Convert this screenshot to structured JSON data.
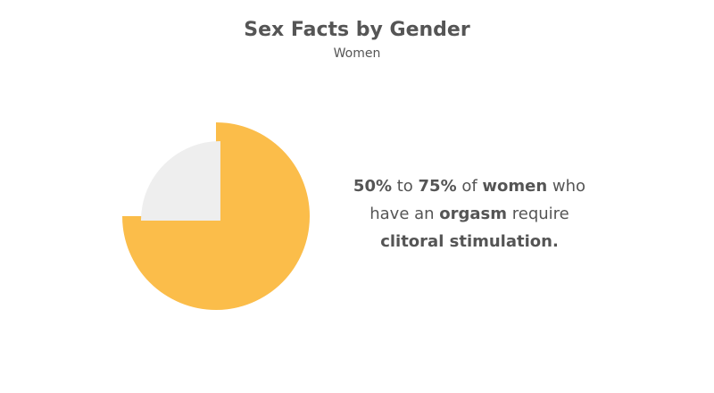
{
  "chart_data": {
    "type": "pie",
    "title": "Sex Facts by Gender",
    "subtitle": "Women",
    "values": [
      75,
      25
    ],
    "colors": [
      "#fbbd4a",
      "#eeeeee"
    ],
    "annotation_lines": [
      [
        {
          "text": "50%",
          "bold": true
        },
        {
          "text": " to ",
          "bold": false
        },
        {
          "text": "75%",
          "bold": true
        },
        {
          "text": " of ",
          "bold": false
        },
        {
          "text": "women",
          "bold": true
        },
        {
          "text": " who",
          "bold": false
        }
      ],
      [
        {
          "text": "have an ",
          "bold": false
        },
        {
          "text": "orgasm",
          "bold": true
        },
        {
          "text": " require",
          "bold": false
        }
      ],
      [
        {
          "text": "clitoral stimulation.",
          "bold": true
        }
      ]
    ]
  }
}
